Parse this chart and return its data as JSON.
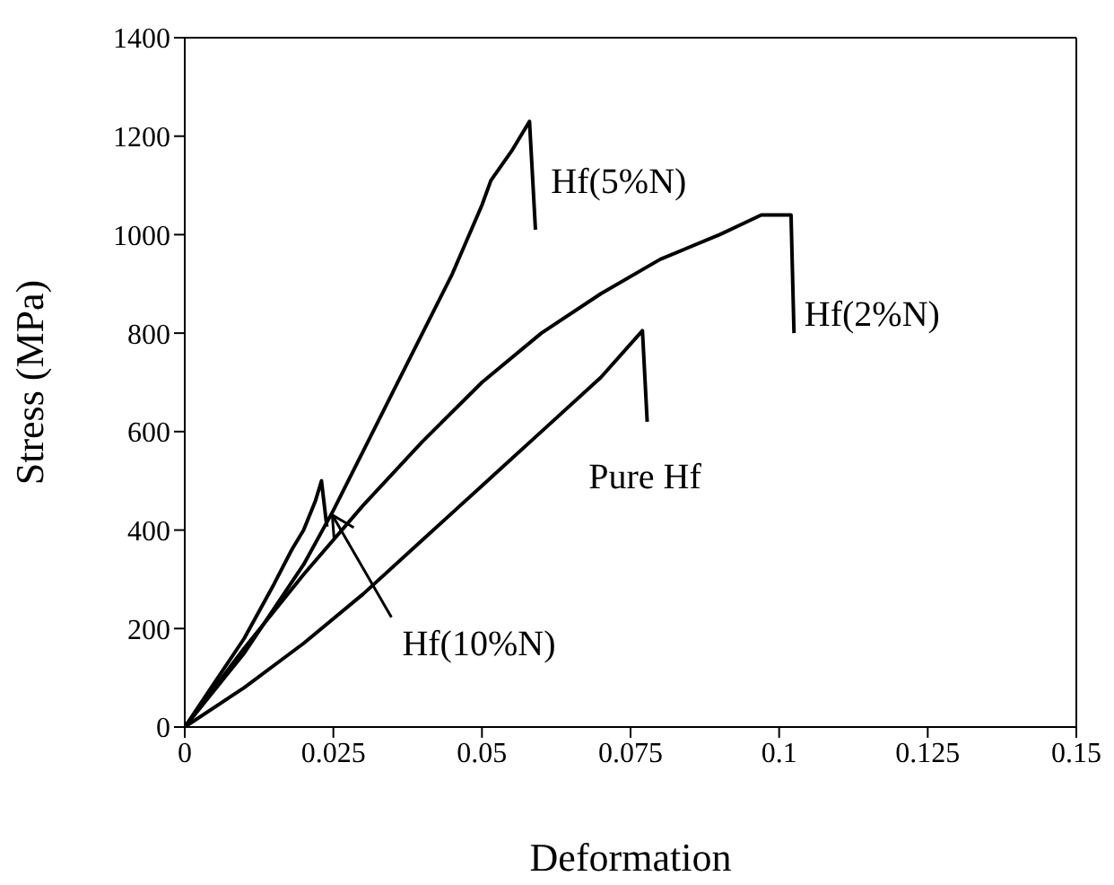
{
  "chart_data": {
    "type": "line",
    "xlabel": "Deformation",
    "ylabel": "Stress (MPa)",
    "xlim": [
      0,
      0.15
    ],
    "xticks": [
      0,
      0.025,
      0.05,
      0.075,
      0.1,
      0.125,
      0.15
    ],
    "ylim": [
      0,
      1400
    ],
    "yticks": [
      0,
      200,
      400,
      600,
      800,
      1000,
      1200,
      1400
    ],
    "marker": "none",
    "line_style": "solid",
    "series": [
      {
        "name": "Hf(5%N)",
        "color": "#000000",
        "x": [
          0,
          0.01,
          0.02,
          0.025,
          0.03,
          0.035,
          0.04,
          0.045,
          0.05,
          0.0515,
          0.055,
          0.058,
          0.059
        ],
        "values": [
          0,
          150,
          330,
          440,
          560,
          680,
          800,
          920,
          1060,
          1110,
          1170,
          1230,
          1010
        ]
      },
      {
        "name": "Hf(2%N)",
        "color": "#000000",
        "x": [
          0,
          0.01,
          0.02,
          0.03,
          0.04,
          0.05,
          0.06,
          0.07,
          0.08,
          0.09,
          0.097,
          0.102,
          0.1025
        ],
        "values": [
          0,
          160,
          310,
          450,
          580,
          700,
          800,
          880,
          950,
          1000,
          1040,
          1040,
          800
        ]
      },
      {
        "name": "Pure Hf",
        "color": "#000000",
        "x": [
          0,
          0.01,
          0.02,
          0.03,
          0.04,
          0.05,
          0.06,
          0.07,
          0.077,
          0.0778
        ],
        "values": [
          0,
          80,
          170,
          270,
          380,
          490,
          600,
          710,
          805,
          620
        ]
      },
      {
        "name": "Hf(10%N)",
        "color": "#000000",
        "x": [
          0,
          0.005,
          0.01,
          0.015,
          0.018,
          0.02,
          0.022,
          0.023,
          0.0239
        ],
        "values": [
          0,
          90,
          180,
          290,
          360,
          400,
          460,
          500,
          407
        ]
      }
    ]
  }
}
